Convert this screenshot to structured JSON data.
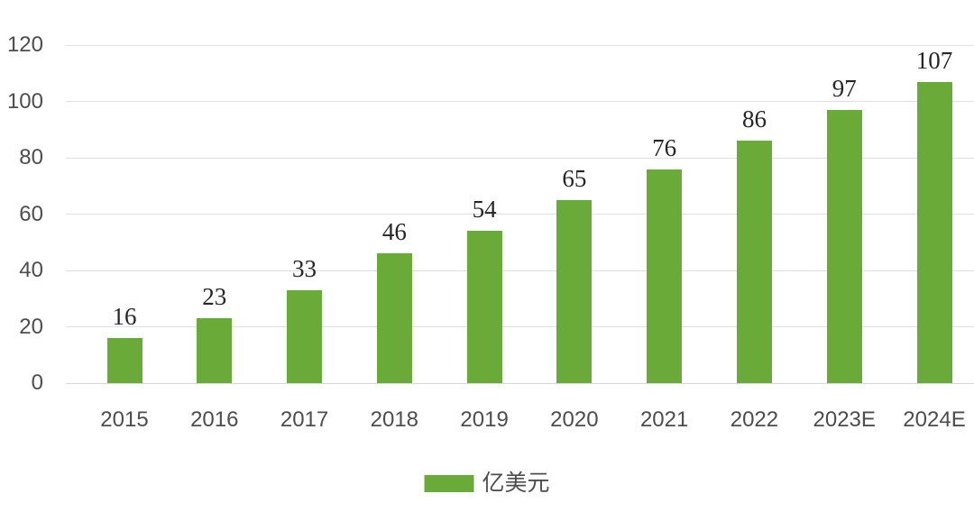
{
  "chart_data": {
    "type": "bar",
    "title": "",
    "xlabel": "",
    "ylabel": "",
    "categories": [
      "2015",
      "2016",
      "2017",
      "2018",
      "2019",
      "2020",
      "2021",
      "2022",
      "2023E",
      "2024E"
    ],
    "values": [
      16,
      23,
      33,
      46,
      54,
      65,
      76,
      86,
      97,
      107
    ],
    "ylim": [
      0,
      120
    ],
    "yticks": [
      0,
      20,
      40,
      60,
      80,
      100,
      120
    ],
    "grid": "horizontal",
    "legend_position": "bottom-center",
    "legend": [
      {
        "label": "亿美元",
        "color": "#6AAA38"
      }
    ],
    "bar_color": "#6AAA38"
  },
  "colors": {
    "background": "#ffffff",
    "bar": "#6AAA38",
    "gridline": "#dedede",
    "axis_text": "#4d4d4d",
    "value_text": "#262626"
  }
}
